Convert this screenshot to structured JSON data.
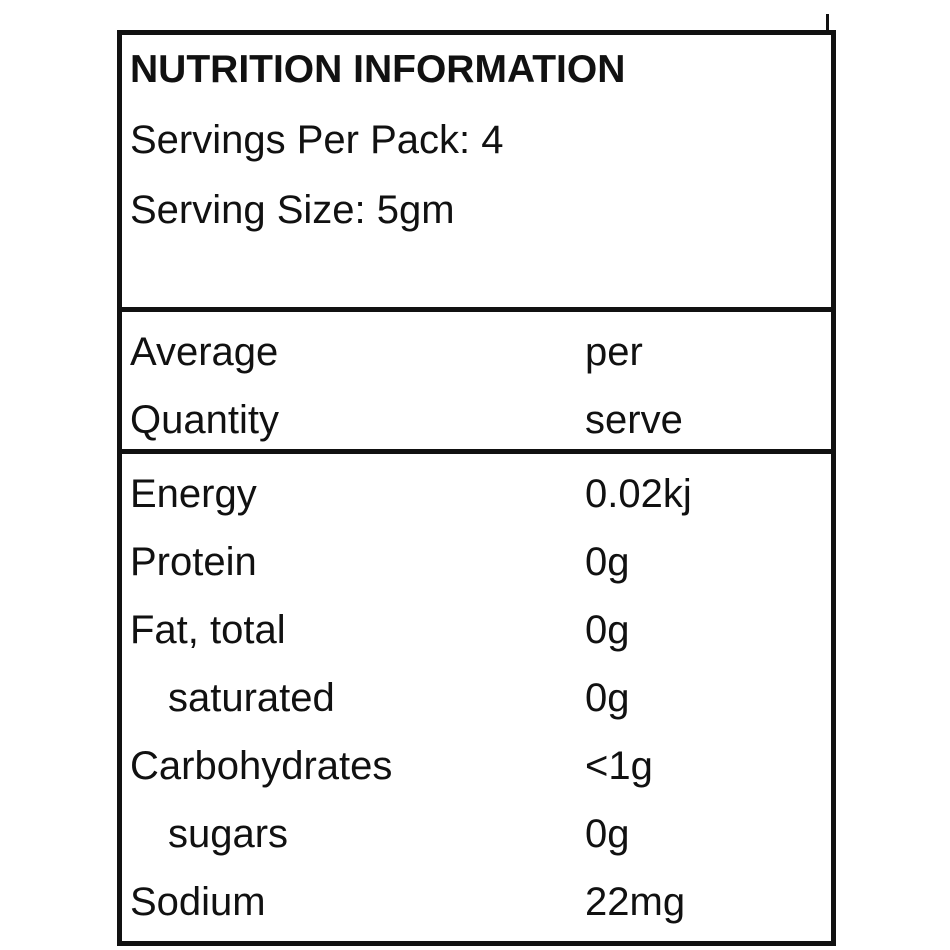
{
  "header": {
    "title": "NUTRITION INFORMATION",
    "servings_per_pack": "Servings Per Pack: 4",
    "serving_size": "Serving Size: 5gm"
  },
  "table": {
    "columns": [
      [
        "Average",
        "Quantity"
      ],
      [
        "per",
        "serve"
      ]
    ],
    "rows": [
      [
        "Energy",
        "0.02kj"
      ],
      [
        "Protein",
        "0g"
      ],
      [
        "Fat, total",
        "0g"
      ],
      [
        "saturated",
        "0g"
      ],
      [
        "Carbohydrates",
        "<1g"
      ],
      [
        "sugars",
        "0g"
      ],
      [
        "Sodium",
        "22mg"
      ]
    ]
  }
}
